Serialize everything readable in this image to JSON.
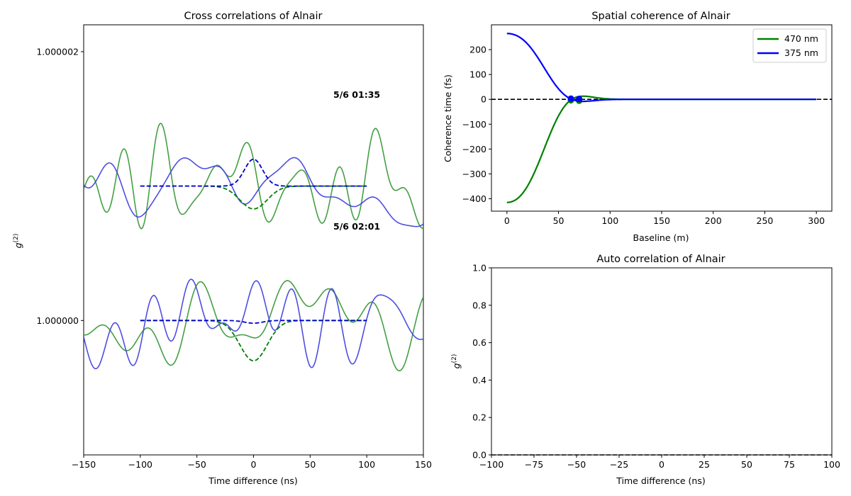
{
  "chart_data": [
    {
      "id": "cross",
      "type": "line",
      "title": "Cross correlations of Alnair",
      "xlabel": "Time difference (ns)",
      "ylabel": "g(2)",
      "xlim": [
        -150,
        150
      ],
      "ylim": [
        0.999999,
        1.0000022
      ],
      "xticks": [
        -150,
        -100,
        -50,
        0,
        50,
        100,
        150
      ],
      "yticks": [
        {
          "value": 1.0,
          "label": "1.000000"
        },
        {
          "value": 1.000002,
          "label": "1.000002"
        }
      ],
      "annotations": [
        {
          "text": "5/6 01:35",
          "x": 70,
          "y": 1.0000017,
          "color": "#f2e21e"
        },
        {
          "text": "5/6 02:01",
          "x": 70,
          "y": 1.0000007,
          "color": "#3b0a4f"
        }
      ],
      "traces": [
        {
          "offset": 1.000001,
          "fits": [
            {
              "color": "#008000",
              "amplitude": -1.7e-07,
              "sigma": 12
            },
            {
              "color": "#0000cc",
              "amplitude": 2e-07,
              "sigma": 8
            }
          ]
        },
        {
          "offset": 1.0,
          "fits": [
            {
              "color": "#008000",
              "amplitude": -3e-07,
              "sigma": 12
            },
            {
              "color": "#0000cc",
              "amplitude": -2e-08,
              "sigma": 8
            }
          ]
        }
      ],
      "noise": {
        "green_color": "#3a9a3a",
        "blue_color": "#4545e0"
      }
    },
    {
      "id": "spatial",
      "type": "line",
      "title": "Spatial coherence of Alnair",
      "xlabel": "Baseline (m)",
      "ylabel": "Coherence time (fs)",
      "xlim": [
        -15,
        315
      ],
      "ylim": [
        -450,
        300
      ],
      "xticks": [
        0,
        50,
        100,
        150,
        200,
        250,
        300
      ],
      "yticks": [
        -400,
        -300,
        -200,
        -100,
        0,
        100,
        200
      ],
      "legend": "top-right",
      "series": [
        {
          "name": "470 nm",
          "color": "#008000",
          "amplitude0": -415,
          "points": [
            {
              "x": 62,
              "y": -4
            },
            {
              "x": 70,
              "y": -6
            }
          ]
        },
        {
          "name": "375 nm",
          "color": "#0000ff",
          "amplitude0": 265,
          "points": [
            {
              "x": 62,
              "y": 3
            },
            {
              "x": 70,
              "y": 2
            }
          ]
        }
      ],
      "hline": 0
    },
    {
      "id": "auto",
      "type": "line",
      "title": "Auto correlation of Alnair",
      "xlabel": "Time difference (ns)",
      "ylabel": "g(2)",
      "xlim": [
        -100,
        100
      ],
      "ylim": [
        0,
        1
      ],
      "xticks": [
        -100,
        -75,
        -50,
        -25,
        0,
        25,
        50,
        75,
        100
      ],
      "yticks": [
        0.0,
        0.2,
        0.4,
        0.6,
        0.8,
        1.0
      ],
      "hline": 0
    }
  ]
}
